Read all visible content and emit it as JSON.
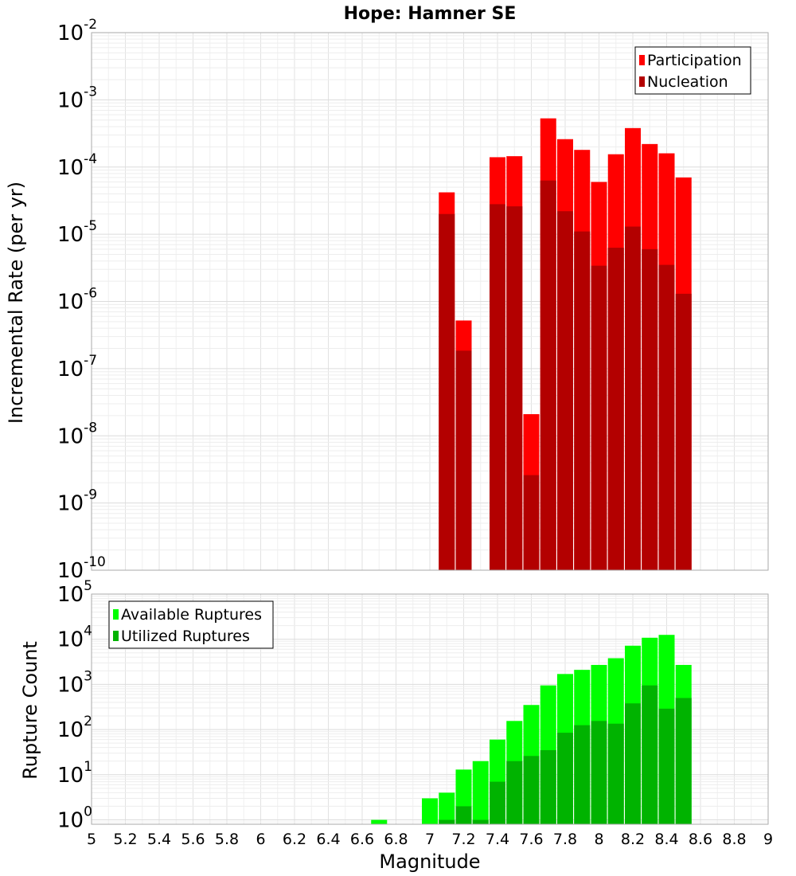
{
  "chart_data": [
    {
      "type": "bar",
      "title": "Hope: Hamner SE",
      "ylabel": "Incremental Rate (per yr)",
      "xlabel": "",
      "yscale": "log",
      "ylim": [
        1e-10,
        0.01
      ],
      "y_tick_exponents": [
        "-10",
        "-9",
        "-8",
        "-7",
        "-6",
        "-5",
        "-4",
        "-3",
        "-2"
      ],
      "y_tick_base": "10",
      "grid": true,
      "legend_position": "top-right",
      "x": [
        7.1,
        7.2,
        7.4,
        7.5,
        7.6,
        7.7,
        7.8,
        7.9,
        8.0,
        8.1,
        8.2,
        8.3,
        8.4,
        8.5
      ],
      "series": [
        {
          "name": "Participation",
          "color": "#ff0000",
          "values": [
            4.2e-05,
            5.2e-07,
            0.00014,
            0.000145,
            2.1e-08,
            0.00053,
            0.00026,
            0.00018,
            6e-05,
            0.000155,
            0.00038,
            0.00022,
            0.00016,
            7e-05
          ]
        },
        {
          "name": "Nucleation",
          "color": "#b30000",
          "values": [
            2e-05,
            1.85e-07,
            2.8e-05,
            2.6e-05,
            2.6e-09,
            6.3e-05,
            2.2e-05,
            1.1e-05,
            3.4e-06,
            6.3e-06,
            1.3e-05,
            6e-06,
            3.5e-06,
            1.3e-06
          ]
        }
      ]
    },
    {
      "type": "bar",
      "title": "",
      "ylabel": "Rupture Count",
      "xlabel": "Magnitude",
      "yscale": "log",
      "ylim": [
        0.8,
        100000.0
      ],
      "y_tick_exponents": [
        "0",
        "1",
        "2",
        "3",
        "4",
        "5"
      ],
      "y_tick_base": "10",
      "grid": true,
      "legend_position": "top-left",
      "x": [
        6.7,
        7.0,
        7.1,
        7.2,
        7.3,
        7.4,
        7.5,
        7.6,
        7.7,
        7.8,
        7.9,
        8.0,
        8.1,
        8.2,
        8.3,
        8.4,
        8.5
      ],
      "series": [
        {
          "name": "Available Ruptures",
          "color": "#00ff00",
          "values": [
            1,
            3,
            4,
            13,
            20,
            60,
            155,
            350,
            950,
            1700,
            2100,
            2700,
            3800,
            7200,
            10800,
            12500,
            2700
          ]
        },
        {
          "name": "Utilized Ruptures",
          "color": "#00b300",
          "values": [
            null,
            null,
            1,
            2,
            1,
            7,
            20,
            26,
            35,
            85,
            125,
            155,
            135,
            380,
            950,
            290,
            500
          ]
        }
      ],
      "x_ticks": [
        "5",
        "5.2",
        "5.4",
        "5.6",
        "5.8",
        "6",
        "6.2",
        "6.4",
        "6.6",
        "6.8",
        "7",
        "7.2",
        "7.4",
        "7.6",
        "7.8",
        "8",
        "8.2",
        "8.4",
        "8.6",
        "8.8",
        "9"
      ],
      "xlim": [
        5,
        9
      ]
    }
  ]
}
